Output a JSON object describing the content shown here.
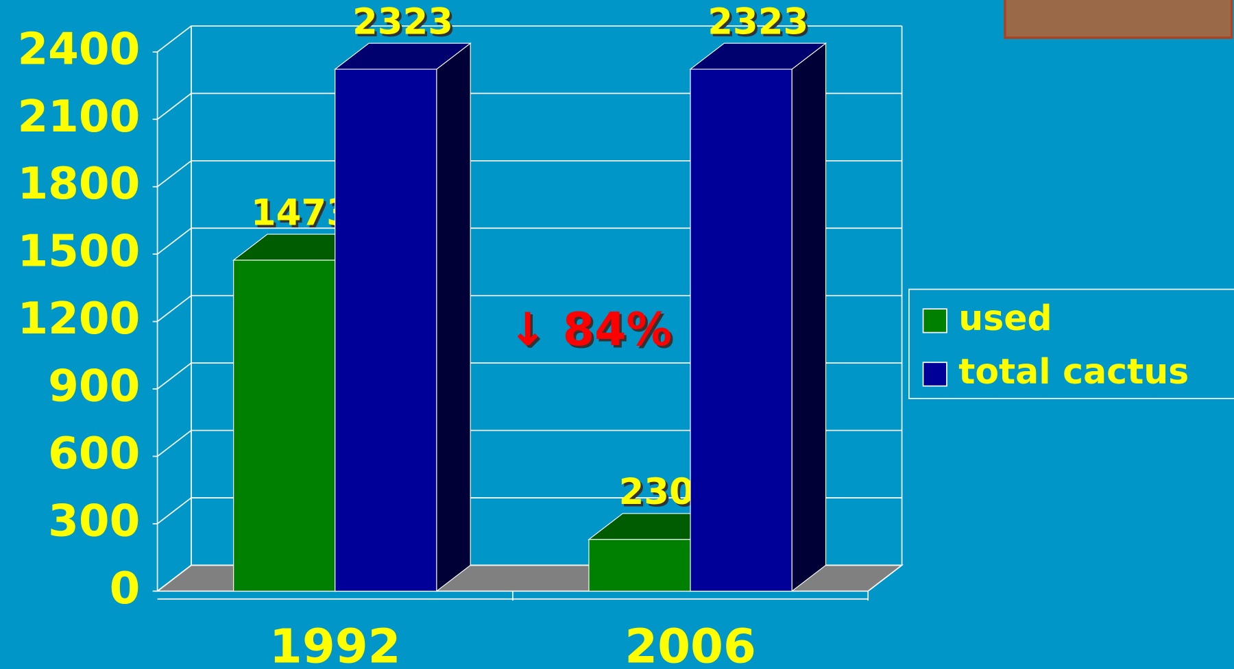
{
  "chart_data": {
    "type": "bar3d",
    "categories": [
      "1992",
      "2006"
    ],
    "series": [
      {
        "name": "used",
        "color": "#008000",
        "values": [
          1473,
          230
        ]
      },
      {
        "name": "total cactus",
        "color": "#000099",
        "values": [
          2323,
          2323
        ]
      }
    ],
    "ylim": [
      0,
      2400
    ],
    "yticks": [
      0,
      300,
      600,
      900,
      1200,
      1500,
      1800,
      2100,
      2400
    ],
    "grid": true,
    "legend": "right",
    "annotation": "↓ 84%"
  }
}
